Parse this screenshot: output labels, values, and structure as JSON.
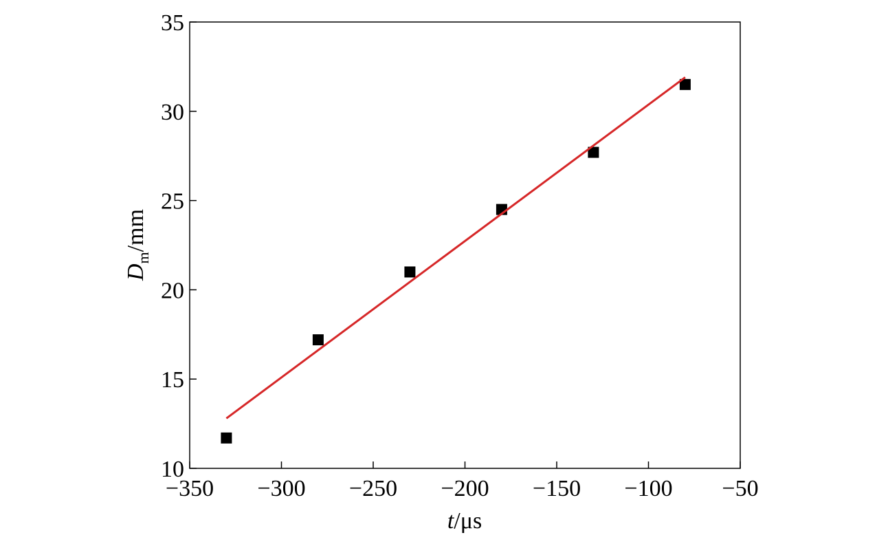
{
  "chart_data": {
    "type": "scatter",
    "xlabel": {
      "symbol": "t",
      "unit": "/μs"
    },
    "ylabel": {
      "symbol": "D",
      "subscript": "m",
      "unit": "/mm"
    },
    "x": [
      -330,
      -280,
      -230,
      -180,
      -130,
      -80
    ],
    "values": [
      11.7,
      17.2,
      21.0,
      24.5,
      27.7,
      31.5
    ],
    "color": "#000000",
    "fit": {
      "x": [
        -330,
        -80
      ],
      "values": [
        12.8,
        31.9
      ],
      "color": "#d62728"
    },
    "xlim": [
      -350,
      -50
    ],
    "xticks": [
      {
        "value": -350,
        "label": "−350"
      },
      {
        "value": -300,
        "label": "−300"
      },
      {
        "value": -250,
        "label": "−250"
      },
      {
        "value": -200,
        "label": "−200"
      },
      {
        "value": -150,
        "label": "−150"
      },
      {
        "value": -100,
        "label": "−100"
      },
      {
        "value": -50,
        "label": "−50"
      }
    ],
    "ylim": [
      10,
      35
    ],
    "yticks": [
      10,
      15,
      20,
      25,
      30,
      35
    ]
  }
}
